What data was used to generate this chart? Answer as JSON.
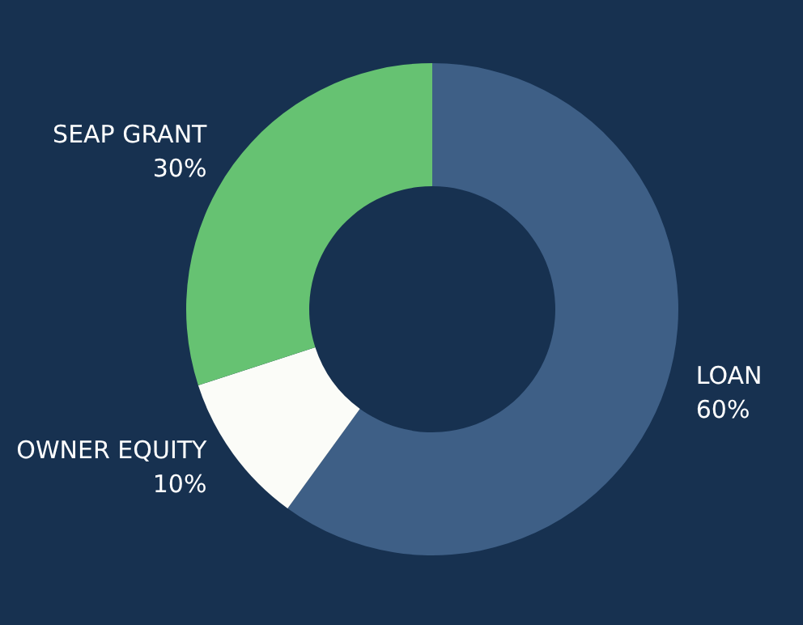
{
  "chart_data": {
    "type": "donut",
    "categories": [
      "LOAN",
      "OWNER EQUITY",
      "SEAP GRANT"
    ],
    "values": [
      60,
      10,
      30
    ],
    "value_labels": [
      "60%",
      "10%",
      "30%"
    ],
    "colors": [
      "#3e5f86",
      "#fbfcf8",
      "#66c272"
    ],
    "legend": false
  }
}
